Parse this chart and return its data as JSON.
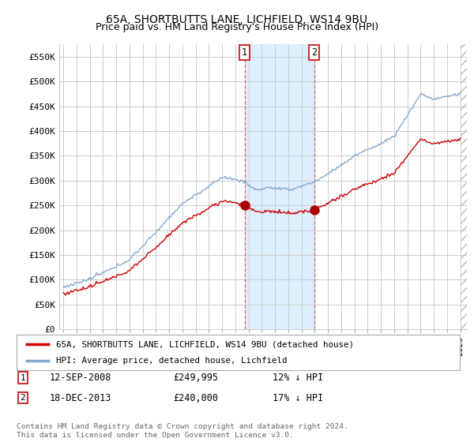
{
  "title": "65A, SHORTBUTTS LANE, LICHFIELD, WS14 9BU",
  "subtitle": "Price paid vs. HM Land Registry's House Price Index (HPI)",
  "ylabel_ticks": [
    "£0",
    "£50K",
    "£100K",
    "£150K",
    "£200K",
    "£250K",
    "£300K",
    "£350K",
    "£400K",
    "£450K",
    "£500K",
    "£550K"
  ],
  "ytick_vals": [
    0,
    50000,
    100000,
    150000,
    200000,
    250000,
    300000,
    350000,
    400000,
    450000,
    500000,
    550000
  ],
  "ylim": [
    0,
    575000
  ],
  "xlim_start": 1994.7,
  "xlim_end": 2025.5,
  "purchase1_x": 2008.7,
  "purchase1_price": 249995,
  "purchase1_label": "1",
  "purchase1_date": "12-SEP-2008",
  "purchase1_hpi_pct": "12% ↓ HPI",
  "purchase2_x": 2013.97,
  "purchase2_price": 240000,
  "purchase2_label": "2",
  "purchase2_date": "18-DEC-2013",
  "purchase2_hpi_pct": "17% ↓ HPI",
  "legend_property": "65A, SHORTBUTTS LANE, LICHFIELD, WS14 9BU (detached house)",
  "legend_hpi": "HPI: Average price, detached house, Lichfield",
  "footnote": "Contains HM Land Registry data © Crown copyright and database right 2024.\nThis data is licensed under the Open Government Licence v3.0.",
  "line_color_property": "#cc0000",
  "line_color_hpi": "#88aacc",
  "shade_color": "#ddeeff",
  "grid_color": "#cccccc",
  "background_color": "#ffffff",
  "vline_color": "#dd6666",
  "marker_color": "#aa0000",
  "title_fontsize": 10,
  "subtitle_fontsize": 9
}
